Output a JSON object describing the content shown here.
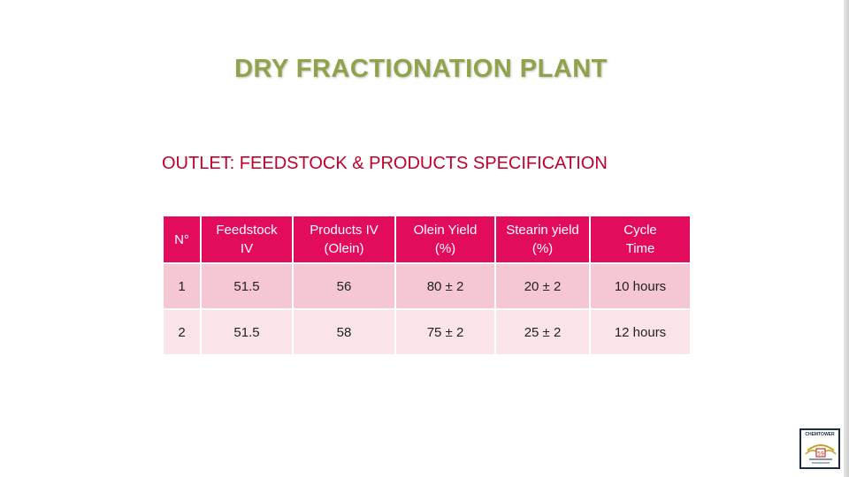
{
  "title": "DRY FRACTIONATION PLANT",
  "subtitle": "OUTLET: FEEDSTOCK & PRODUCTS SPECIFICATION",
  "table": {
    "headers": [
      "N°",
      "Feedstock\nIV",
      "Products IV\n(Olein)",
      "Olein Yield\n(%)",
      "Stearin yield\n(%)",
      "Cycle\nTime"
    ],
    "rows": [
      [
        "1",
        "51.5",
        "56",
        "80 ± 2",
        "20 ± 2",
        "10 hours"
      ],
      [
        "2",
        "51.5",
        "58",
        "75 ± 2",
        "25 ± 2",
        "12 hours"
      ]
    ]
  },
  "logo": {
    "icon": "company-logo-icon",
    "text": "CHEMTOWER"
  },
  "colors": {
    "title": "#8fa34a",
    "subtitle": "#c0002b",
    "header_bg": "#e30b5c",
    "row_a_bg": "#f5c7d2",
    "row_b_bg": "#fae4e9"
  }
}
